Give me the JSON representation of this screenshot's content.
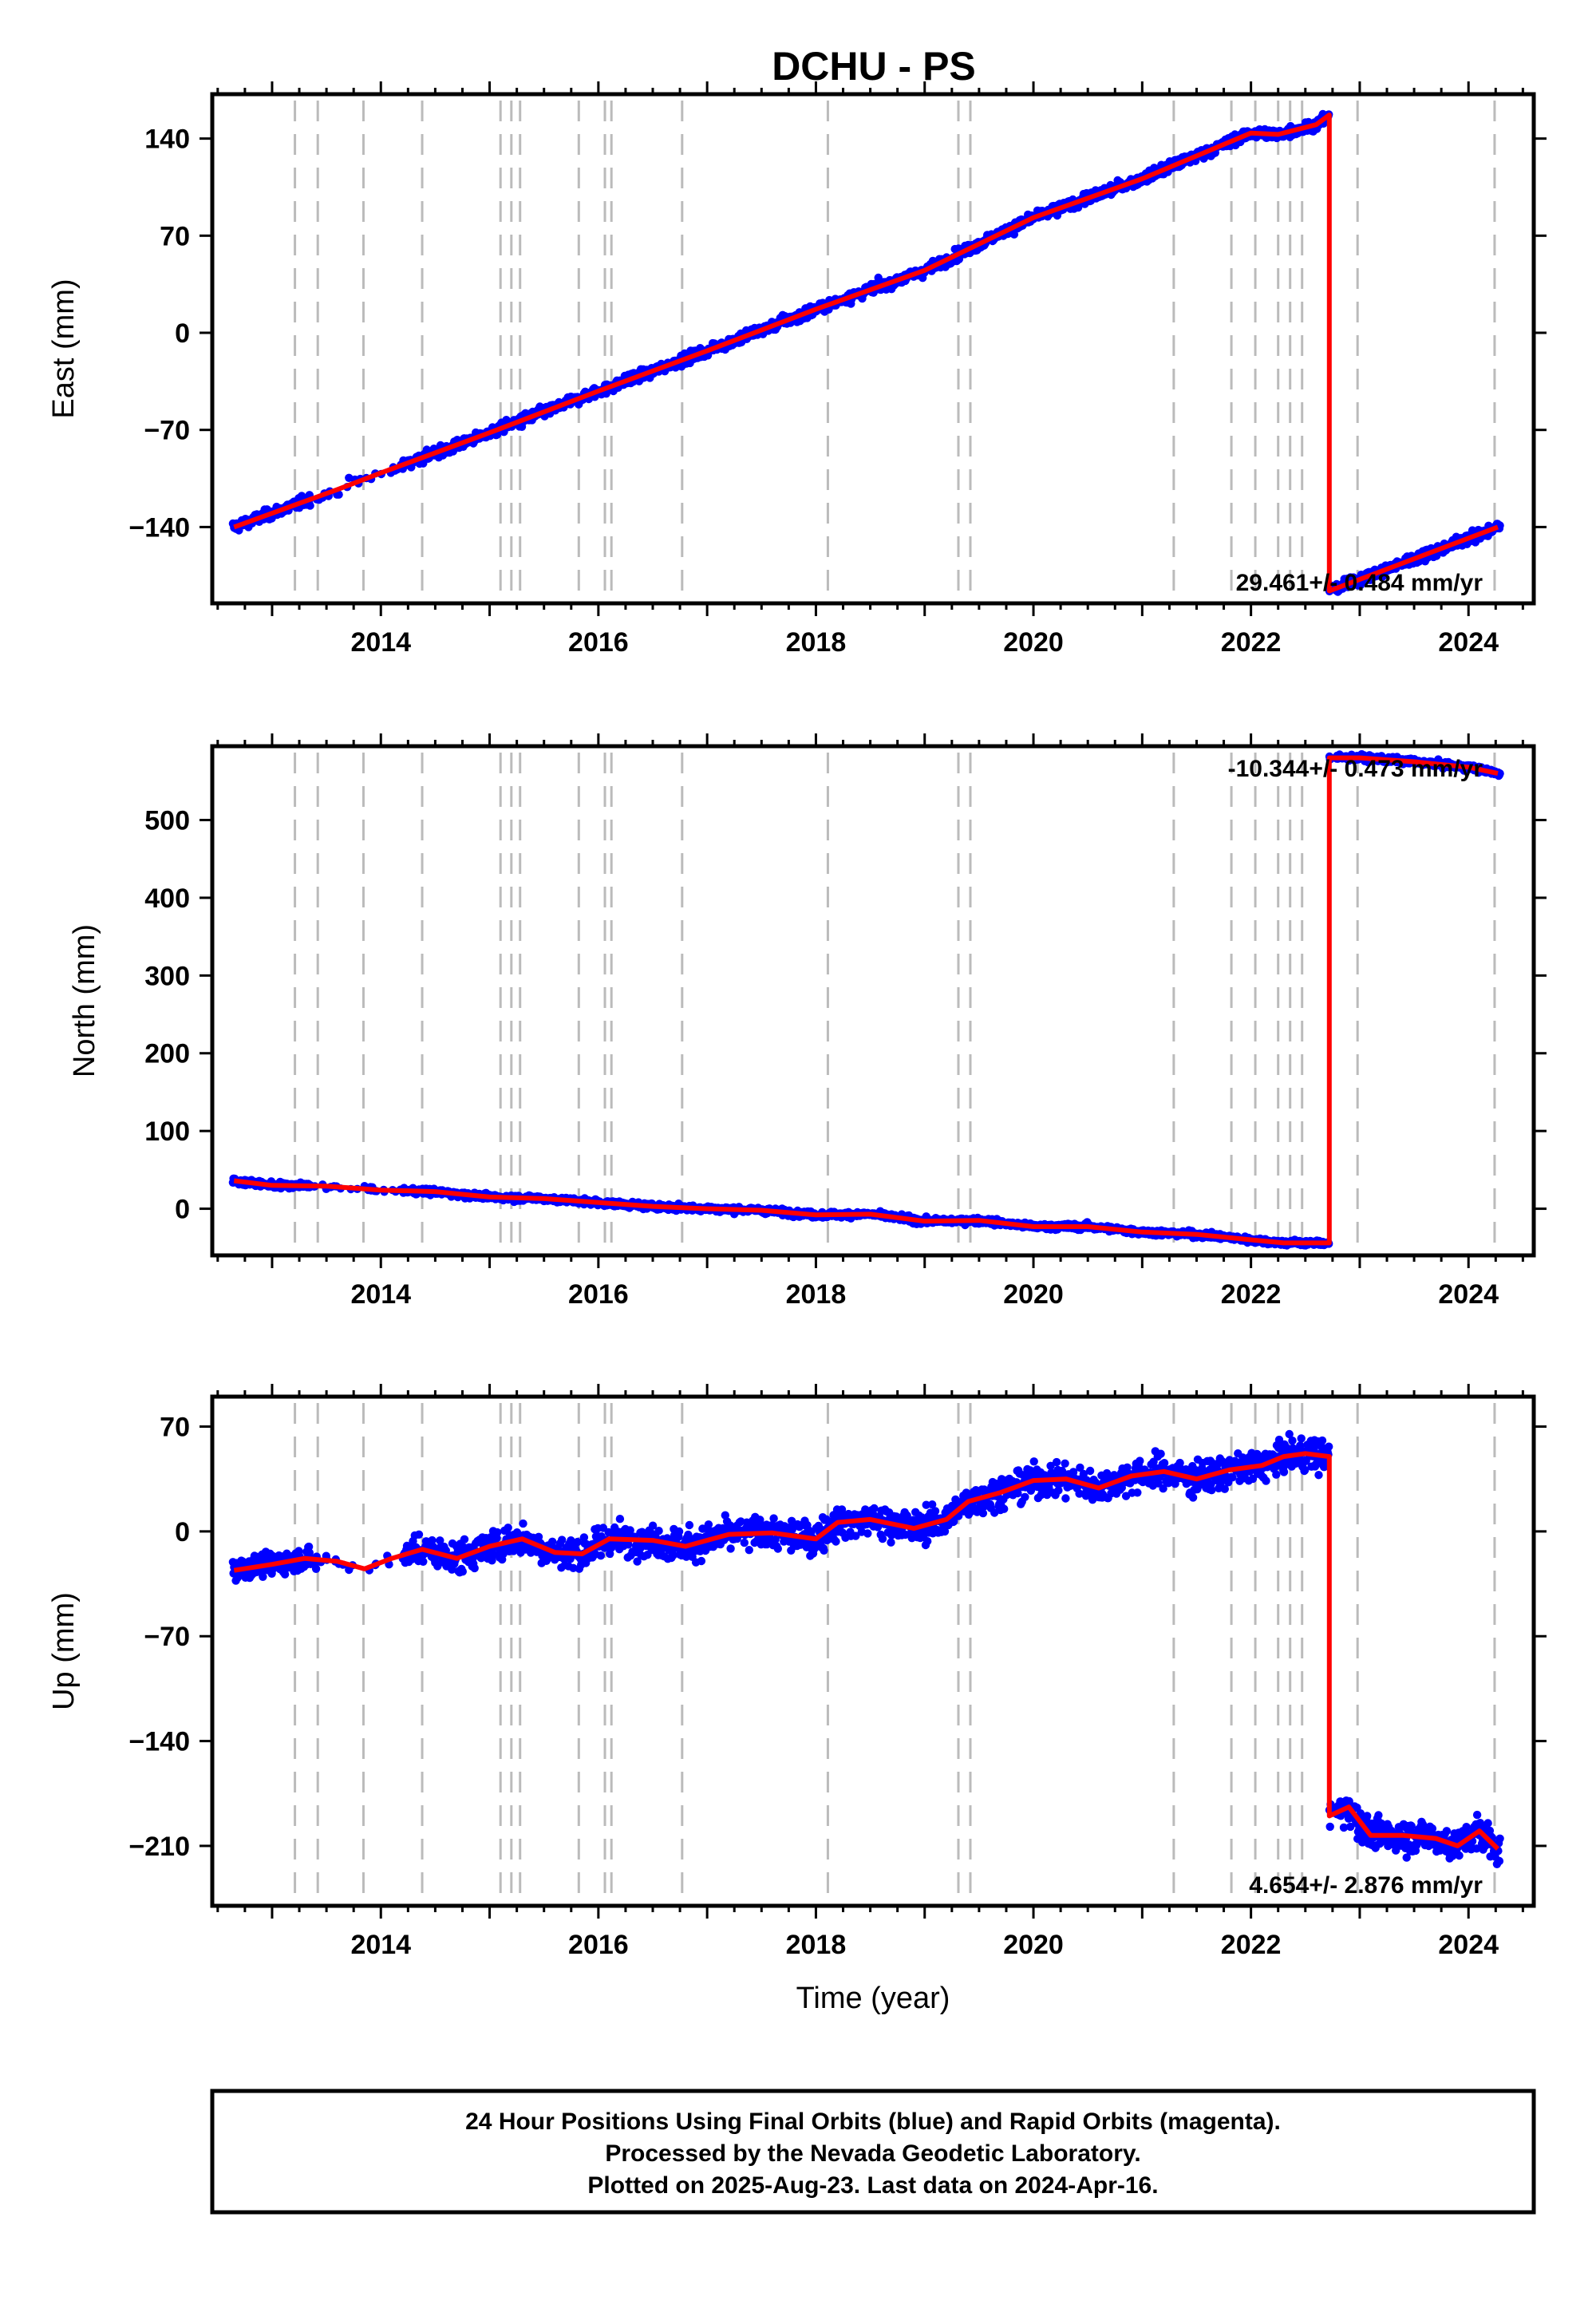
{
  "colors": {
    "data_points": "#0000ff",
    "model_line": "#ff0000",
    "event_lines": "#bbbbbb",
    "frame": "#000000"
  },
  "chart_data": [
    {
      "type": "scatter",
      "title": "DCHU - PS",
      "ylabel": "East (mm)",
      "xlabel": "",
      "xlim": [
        2012.45,
        2024.6
      ],
      "ylim": [
        -195,
        172
      ],
      "xticks": [
        2014,
        2016,
        2018,
        2020,
        2022,
        2024
      ],
      "yticks": [
        -140,
        -70,
        0,
        70,
        140
      ],
      "rate_label": "29.461+/- 0.484 mm/yr",
      "rate_position": "bottom-right",
      "grid": false,
      "series": [
        {
          "role": "model",
          "x": [
            2012.65,
            2013.6,
            2014.0,
            2015.0,
            2016.0,
            2017.0,
            2018.0,
            2019.0,
            2020.0,
            2021.0,
            2022.0,
            2022.25,
            2022.6,
            2022.72,
            2022.72,
            2024.27
          ],
          "y": [
            -140,
            -113,
            -101,
            -72,
            -42,
            -13,
            17,
            45,
            83,
            111,
            144,
            143,
            150,
            157,
            -186,
            -140
          ]
        }
      ]
    },
    {
      "type": "scatter",
      "ylabel": "North (mm)",
      "xlabel": "",
      "xlim": [
        2012.45,
        2024.6
      ],
      "ylim": [
        -60,
        595
      ],
      "xticks": [
        2014,
        2016,
        2018,
        2020,
        2022,
        2024
      ],
      "yticks": [
        0,
        100,
        200,
        300,
        400,
        500
      ],
      "rate_label": "-10.344+/- 0.473 mm/yr",
      "rate_position": "top-right",
      "grid": false,
      "series": [
        {
          "role": "model",
          "x": [
            2012.65,
            2013.0,
            2013.5,
            2014.0,
            2014.5,
            2015.0,
            2015.5,
            2016.0,
            2016.5,
            2017.0,
            2017.5,
            2018.0,
            2018.5,
            2019.0,
            2019.5,
            2020.0,
            2020.5,
            2021.0,
            2021.5,
            2022.0,
            2022.3,
            2022.72,
            2022.72,
            2023.0,
            2023.5,
            2024.0,
            2024.27
          ],
          "y": [
            36,
            30,
            29,
            24,
            22,
            15,
            13,
            8,
            3,
            0,
            -2,
            -8,
            -7,
            -16,
            -15,
            -23,
            -23,
            -30,
            -33,
            -40,
            -44,
            -44,
            580,
            580,
            575,
            568,
            560
          ]
        }
      ]
    },
    {
      "type": "scatter",
      "ylabel": "Up (mm)",
      "xlabel": "Time (year)",
      "xlim": [
        2012.45,
        2024.6
      ],
      "ylim": [
        -250,
        90
      ],
      "xticks": [
        2014,
        2016,
        2018,
        2020,
        2022,
        2024
      ],
      "yticks": [
        -210,
        -140,
        -70,
        0,
        70
      ],
      "rate_label": "4.654+/- 2.876 mm/yr",
      "rate_position": "bottom-right",
      "grid": false,
      "series": [
        {
          "role": "model",
          "x": [
            2012.65,
            2013.0,
            2013.3,
            2013.6,
            2013.85,
            2014.1,
            2014.38,
            2014.7,
            2015.0,
            2015.3,
            2015.6,
            2015.85,
            2016.1,
            2016.5,
            2016.8,
            2017.2,
            2017.6,
            2018.0,
            2018.2,
            2018.5,
            2018.9,
            2019.2,
            2019.4,
            2019.7,
            2020.0,
            2020.3,
            2020.6,
            2020.9,
            2021.2,
            2021.5,
            2021.8,
            2022.1,
            2022.3,
            2022.5,
            2022.72,
            2022.72,
            2022.9,
            2023.1,
            2023.4,
            2023.7,
            2023.9,
            2024.1,
            2024.27
          ],
          "y": [
            -26,
            -22,
            -18,
            -20,
            -25,
            -18,
            -12,
            -18,
            -10,
            -5,
            -14,
            -15,
            -5,
            -6,
            -10,
            -2,
            -1,
            -5,
            6,
            8,
            2,
            8,
            20,
            26,
            34,
            35,
            29,
            37,
            40,
            35,
            41,
            44,
            50,
            52,
            50,
            -190,
            -184,
            -203,
            -203,
            -205,
            -210,
            -200,
            -212
          ]
        }
      ]
    }
  ],
  "event_line_years": [
    2013.21,
    2013.42,
    2013.84,
    2014.38,
    2015.1,
    2015.2,
    2015.28,
    2015.82,
    2016.06,
    2016.12,
    2016.77,
    2018.11,
    2019.31,
    2019.42,
    2021.29,
    2021.82,
    2022.04,
    2022.25,
    2022.36,
    2022.47,
    2022.98,
    2024.24
  ],
  "footer": {
    "line1": "24 Hour Positions Using Final Orbits (blue) and Rapid Orbits (magenta).",
    "line2": "Processed by the Nevada Geodetic Laboratory.",
    "line3": "Plotted on 2025-Aug-23. Last data on 2024-Apr-16."
  }
}
